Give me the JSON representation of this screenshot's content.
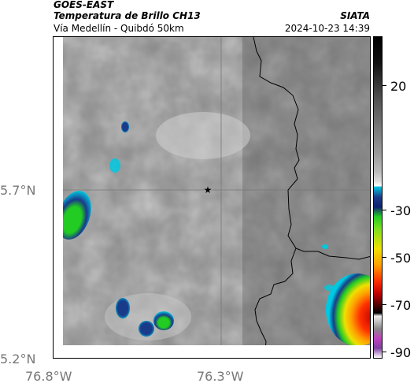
{
  "header": {
    "product": "GOES-EAST",
    "subtitle": "Temperatura de Brillo CH13",
    "source": "SIATA",
    "region": "Vía Medellín - Quibdó 50km",
    "datetime": "2024-10-23 14:39"
  },
  "axes": {
    "lat_labels": [
      "5.7°N",
      "5.2°N"
    ],
    "lon_labels": [
      "76.8°W",
      "76.3°W"
    ]
  },
  "colorbar": {
    "labels": [
      "20",
      "-30",
      "-50",
      "-70",
      "-90"
    ]
  },
  "marker": {
    "symbol": "★"
  },
  "colors": {
    "cold_cloud_blue": "#1a3a8a",
    "cyan": "#00c8e0",
    "green": "#22cc22",
    "yellow": "#f0e000",
    "red": "#cc1010",
    "magenta": "#c040c0"
  }
}
